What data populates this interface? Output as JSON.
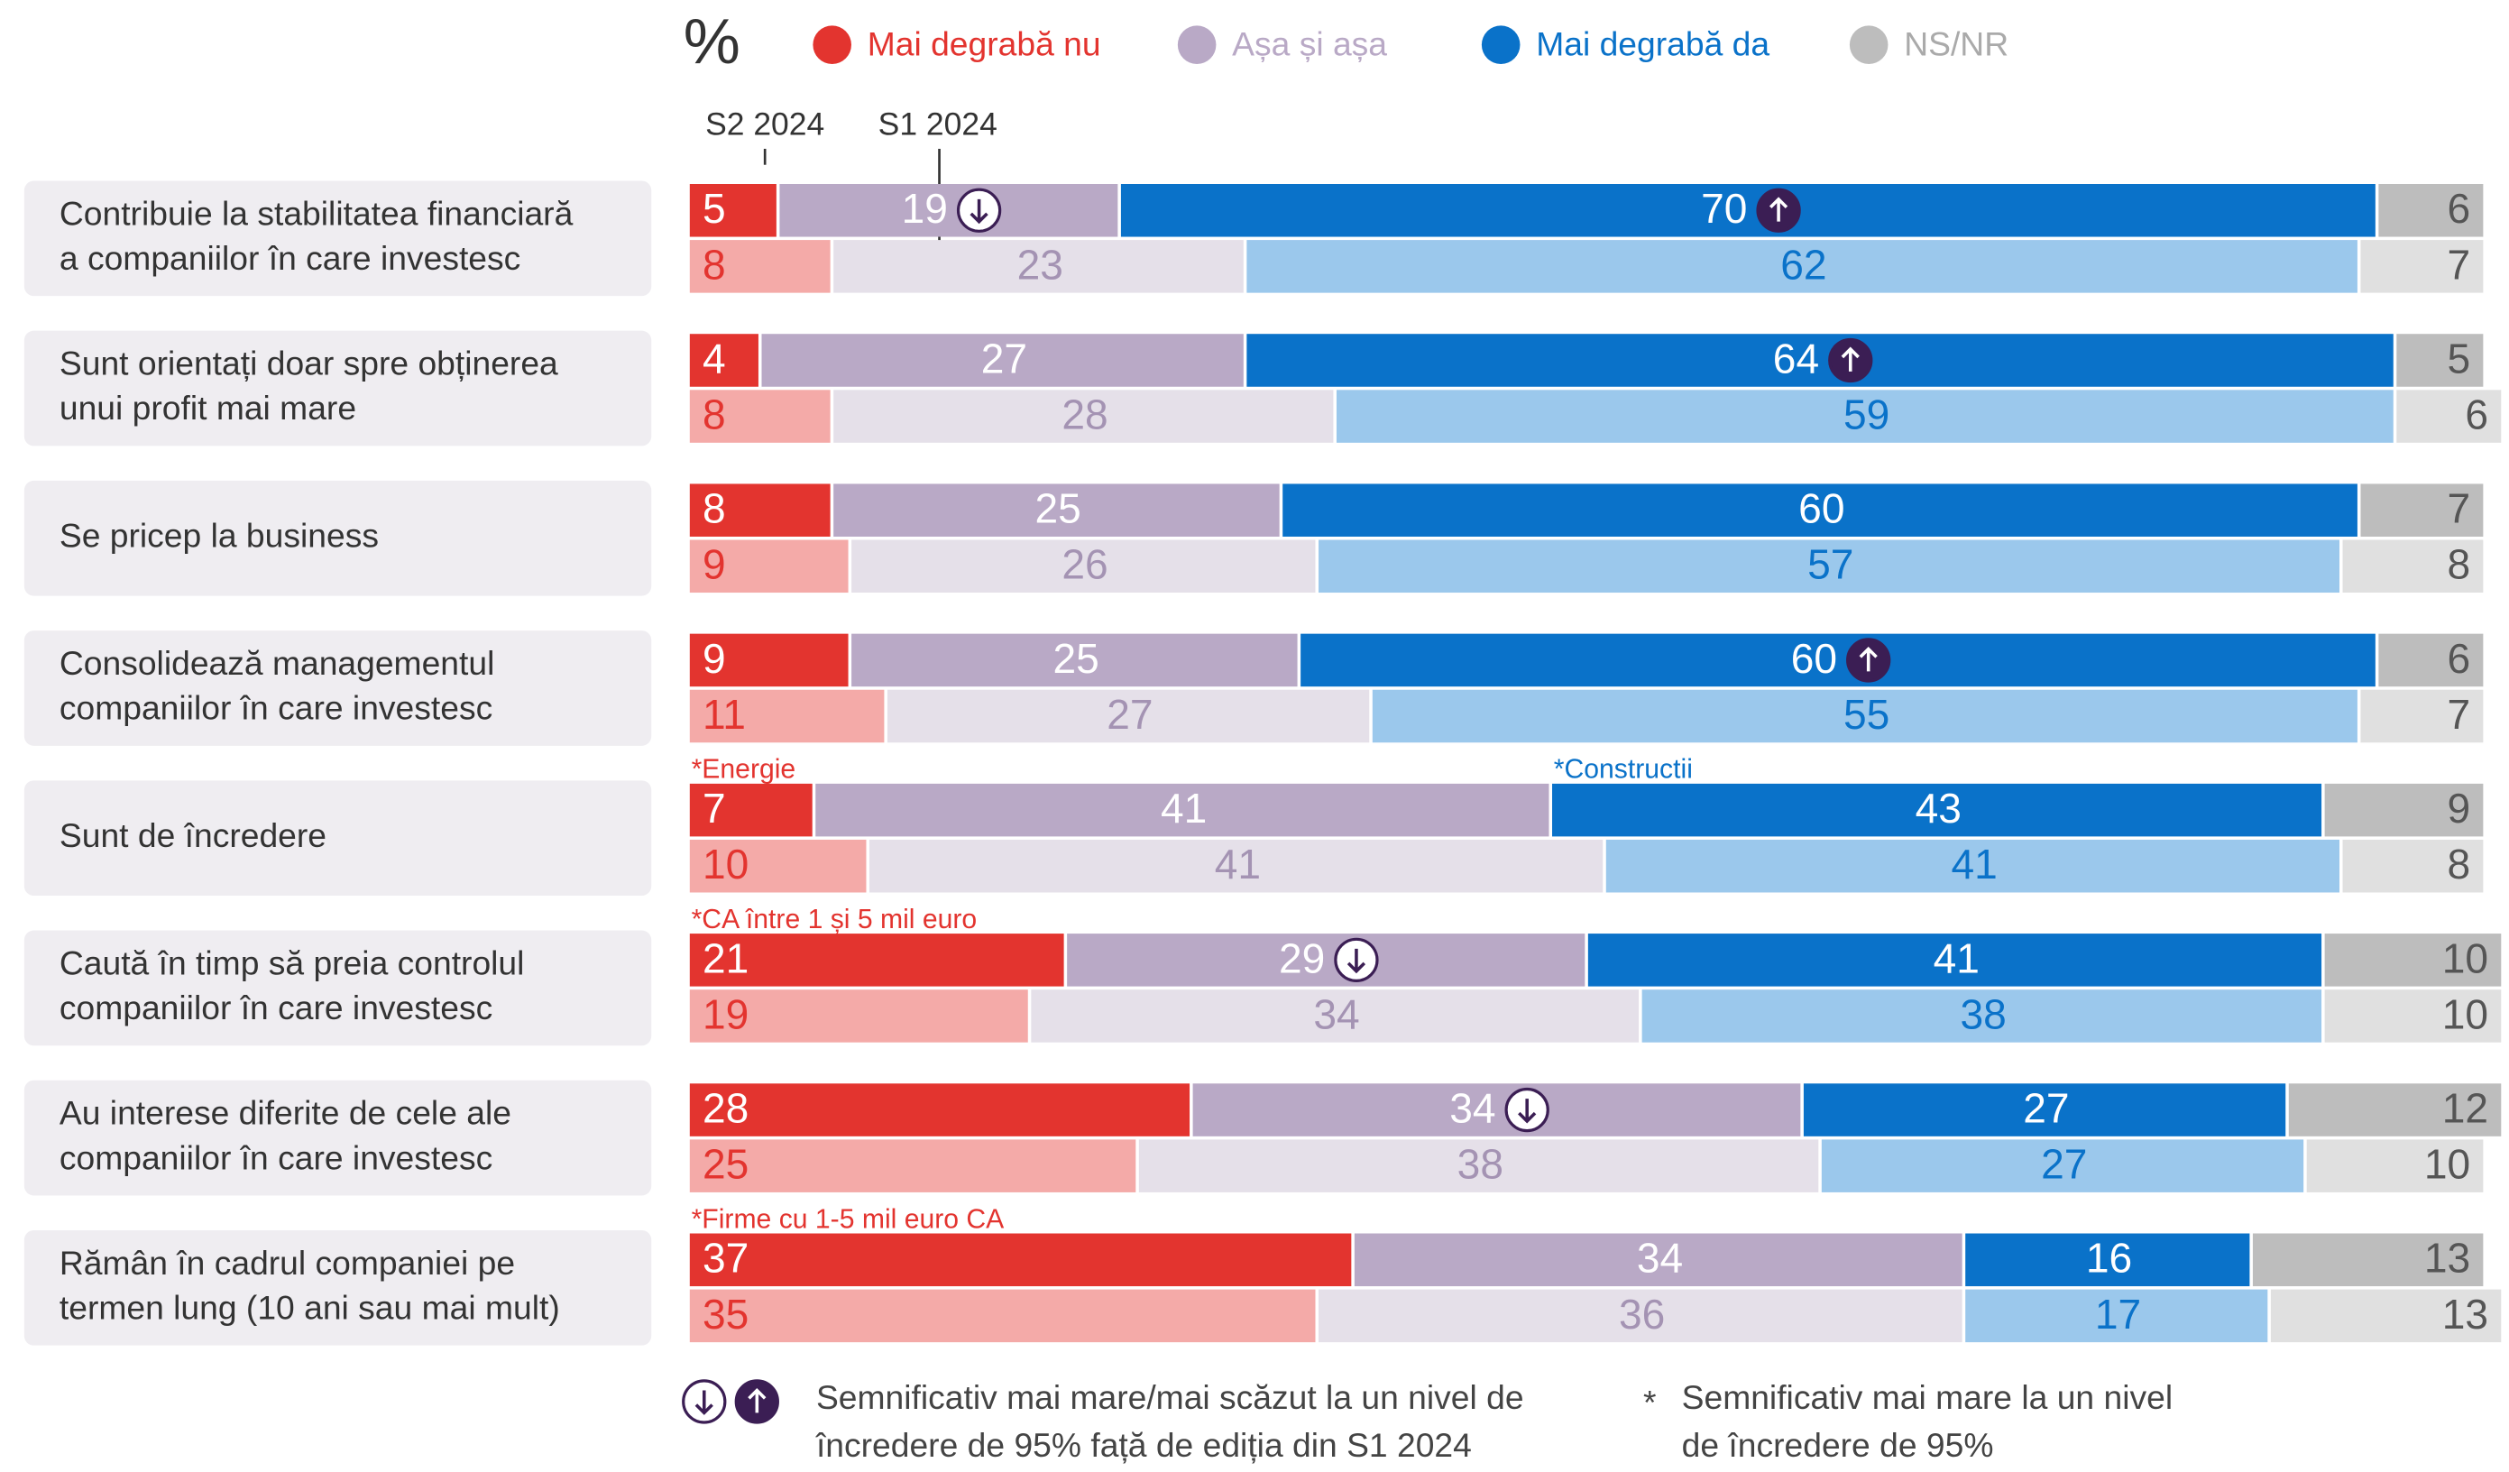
{
  "chart_data": {
    "type": "bar",
    "orientation": "horizontal",
    "stacked": true,
    "unit": "%",
    "periods": [
      "S2 2024",
      "S1 2024"
    ],
    "xlim": [
      0,
      100
    ],
    "categories": [
      [
        "Contribuie la stabilitatea financiară",
        "a companiilor în care investesc"
      ],
      [
        "Sunt orientați doar spre obținerea",
        "unui profit mai mare"
      ],
      [
        "Se pricep la business"
      ],
      [
        "Consolidează managementul",
        "companiilor în care investesc"
      ],
      [
        "Sunt de încredere"
      ],
      [
        "Caută în timp să preia controlul",
        "companiilor în care investesc"
      ],
      [
        "Au interese diferite de cele ale",
        "companiilor în care investesc"
      ],
      [
        "Rămân în cadrul companiei pe",
        "termen lung (10 ani sau mai mult)"
      ]
    ],
    "series": [
      {
        "name": "Mai degrabă nu",
        "color": "#e3342f",
        "light_color": "#f4aaa8",
        "text_color": "#ffffff",
        "light_text_color": "#e3342f",
        "values": [
          [
            5,
            8
          ],
          [
            4,
            8
          ],
          [
            8,
            9
          ],
          [
            9,
            11
          ],
          [
            7,
            10
          ],
          [
            21,
            19
          ],
          [
            28,
            25
          ],
          [
            37,
            35
          ]
        ]
      },
      {
        "name": "Așa și așa",
        "color": "#b9a9c6",
        "light_color": "#e5e0e9",
        "text_color": "#ffffff",
        "light_text_color": "#a493b3",
        "values": [
          [
            19,
            23
          ],
          [
            27,
            28
          ],
          [
            25,
            26
          ],
          [
            25,
            27
          ],
          [
            41,
            41
          ],
          [
            29,
            34
          ],
          [
            34,
            38
          ],
          [
            34,
            36
          ]
        ]
      },
      {
        "name": "Mai degrabă da",
        "color": "#0a72c9",
        "light_color": "#9bc8ec",
        "text_color": "#ffffff",
        "light_text_color": "#0a72c9",
        "values": [
          [
            70,
            62
          ],
          [
            64,
            59
          ],
          [
            60,
            57
          ],
          [
            60,
            55
          ],
          [
            43,
            41
          ],
          [
            41,
            38
          ],
          [
            27,
            27
          ],
          [
            16,
            17
          ]
        ]
      },
      {
        "name": "NS/NR",
        "color": "#bdbdbd",
        "light_color": "#e0e0e0",
        "text_color": "#555555",
        "light_text_color": "#555555",
        "values": [
          [
            6,
            7
          ],
          [
            5,
            6
          ],
          [
            7,
            8
          ],
          [
            6,
            7
          ],
          [
            9,
            8
          ],
          [
            10,
            10
          ],
          [
            12,
            10
          ],
          [
            13,
            13
          ]
        ]
      }
    ],
    "significance": [
      {
        "category": 0,
        "series": 1,
        "direction": "down"
      },
      {
        "category": 0,
        "series": 2,
        "direction": "up"
      },
      {
        "category": 1,
        "series": 2,
        "direction": "up"
      },
      {
        "category": 3,
        "series": 2,
        "direction": "up"
      },
      {
        "category": 5,
        "series": 1,
        "direction": "down"
      },
      {
        "category": 6,
        "series": 1,
        "direction": "down"
      }
    ],
    "annotations": [
      {
        "text": "*Energie",
        "category": 4,
        "series": 0
      },
      {
        "text": "*Constructii",
        "category": 4,
        "series": 2
      },
      {
        "text": "*CA între 1 și 5 mil euro",
        "category": 5,
        "series": 0
      },
      {
        "text": "*Firme cu 1-5 mil euro CA",
        "category": 7,
        "series": 0
      }
    ],
    "footnotes": [
      {
        "symbol": null,
        "lines": [
          "Semnificativ mai mare/mai scăzut la un nivel de",
          "încredere de 95% față de ediția din S1 2024"
        ]
      },
      {
        "symbol": "*",
        "lines": [
          "Semnificativ mai mare la un nivel",
          "de încredere de 95%"
        ]
      }
    ]
  }
}
